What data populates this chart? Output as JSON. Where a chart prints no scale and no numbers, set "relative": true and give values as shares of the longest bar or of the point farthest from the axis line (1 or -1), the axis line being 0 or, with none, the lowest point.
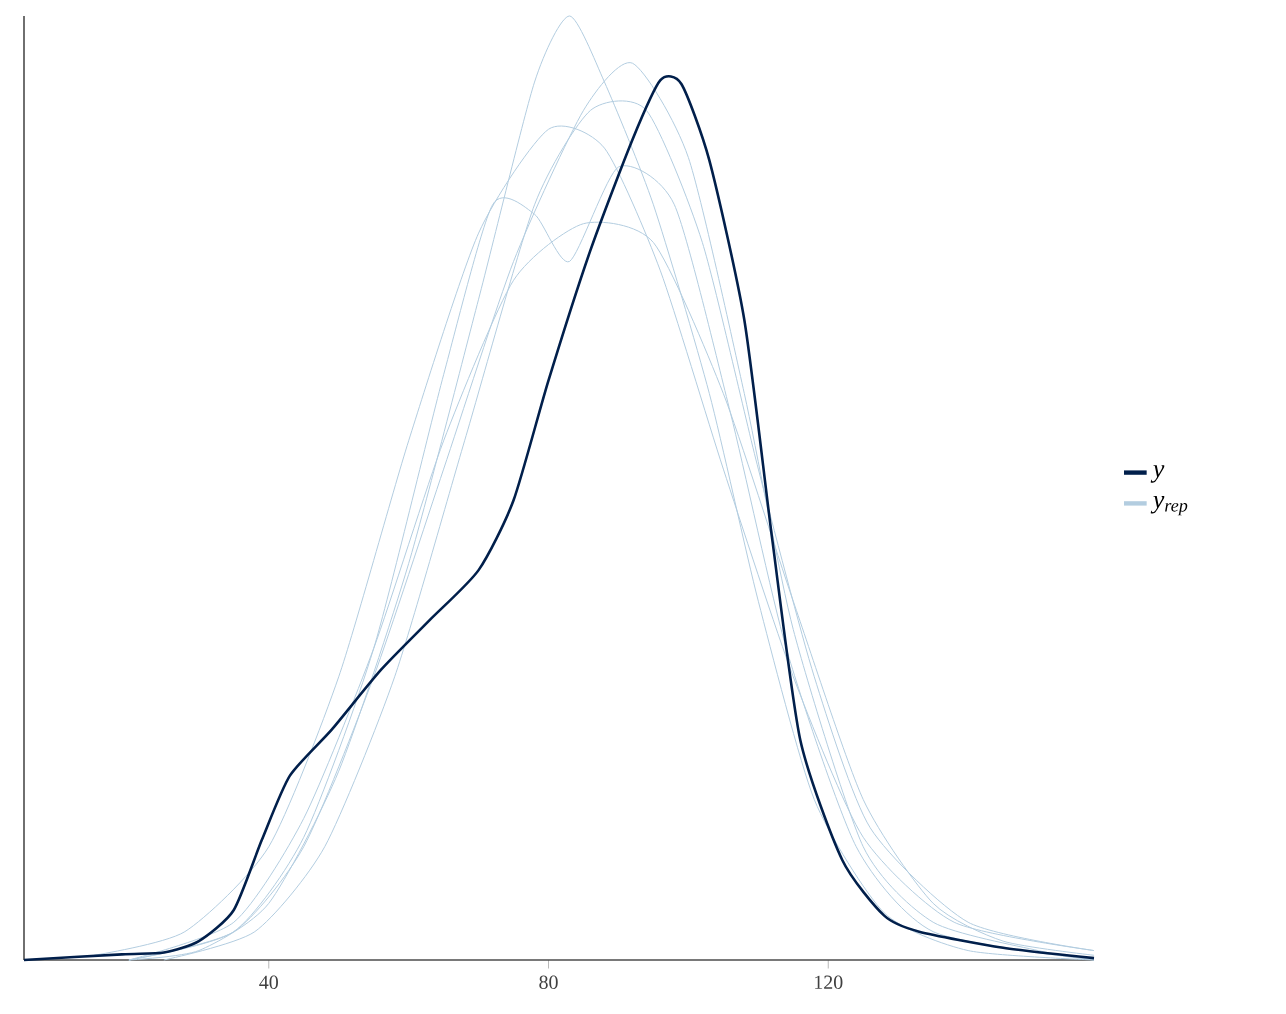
{
  "chart_data": {
    "type": "line",
    "relative": true,
    "xlim": [
      5,
      158
    ],
    "xticks": [
      40,
      80,
      120
    ],
    "legend": "right",
    "grid": false,
    "marker": "none",
    "line_style": "solid",
    "series": [
      {
        "name": "y",
        "color": "#011f4b",
        "x": [
          5,
          19,
          25,
          30,
          35,
          39,
          43,
          49,
          56,
          63,
          70,
          75,
          80,
          86,
          92,
          96,
          99,
          103,
          108,
          112,
          116,
          122,
          128,
          133,
          145,
          158
        ],
        "values": [
          0,
          0.006,
          0.008,
          0.02,
          0.053,
          0.127,
          0.195,
          0.244,
          0.307,
          0.36,
          0.413,
          0.487,
          0.614,
          0.752,
          0.869,
          0.932,
          0.928,
          0.847,
          0.678,
          0.445,
          0.233,
          0.106,
          0.047,
          0.03,
          0.013,
          0.002
        ]
      },
      {
        "name": "*y*$_{rep}$",
        "color": "#b3cde0",
        "x": [
          20,
          30,
          40,
          50,
          60,
          70,
          78,
          83,
          88,
          95,
          103,
          110,
          118,
          128,
          140,
          158
        ],
        "values": [
          0,
          0.01,
          0.06,
          0.2,
          0.42,
          0.7,
          0.93,
          1.0,
          0.93,
          0.8,
          0.6,
          0.38,
          0.17,
          0.05,
          0.01,
          0
        ]
      },
      {
        "color": "#b3cde0",
        "x": [
          20,
          35,
          45,
          55,
          65,
          75,
          85,
          92,
          100,
          108,
          115,
          125,
          135,
          150,
          158
        ],
        "values": [
          0,
          0.03,
          0.12,
          0.3,
          0.52,
          0.74,
          0.9,
          0.95,
          0.85,
          0.6,
          0.35,
          0.12,
          0.04,
          0.01,
          0
        ]
      },
      {
        "color": "#b3cde0",
        "x": [
          20,
          35,
          45,
          55,
          65,
          75,
          85,
          95,
          105,
          115,
          125,
          135,
          145,
          158
        ],
        "values": [
          0,
          0.04,
          0.15,
          0.33,
          0.55,
          0.72,
          0.78,
          0.76,
          0.6,
          0.38,
          0.17,
          0.06,
          0.02,
          0.005
        ]
      },
      {
        "color": "#b3cde0",
        "x": [
          20,
          35,
          45,
          55,
          65,
          72,
          78,
          83,
          90,
          98,
          106,
          114,
          124,
          135,
          158
        ],
        "values": [
          0,
          0.03,
          0.13,
          0.33,
          0.62,
          0.8,
          0.79,
          0.74,
          0.84,
          0.8,
          0.58,
          0.33,
          0.12,
          0.03,
          0
        ]
      },
      {
        "color": "#b3cde0",
        "x": [
          15,
          28,
          40,
          50,
          60,
          70,
          80,
          88,
          96,
          105,
          115,
          125,
          138,
          158
        ],
        "values": [
          0.005,
          0.03,
          0.12,
          0.3,
          0.55,
          0.77,
          0.88,
          0.86,
          0.73,
          0.52,
          0.3,
          0.13,
          0.04,
          0.01
        ]
      },
      {
        "color": "#b3cde0",
        "x": [
          25,
          38,
          48,
          58,
          68,
          78,
          86,
          94,
          102,
          110,
          118,
          126,
          140,
          158
        ],
        "values": [
          0,
          0.03,
          0.12,
          0.3,
          0.55,
          0.8,
          0.9,
          0.9,
          0.76,
          0.52,
          0.3,
          0.14,
          0.04,
          0.01
        ]
      }
    ]
  }
}
